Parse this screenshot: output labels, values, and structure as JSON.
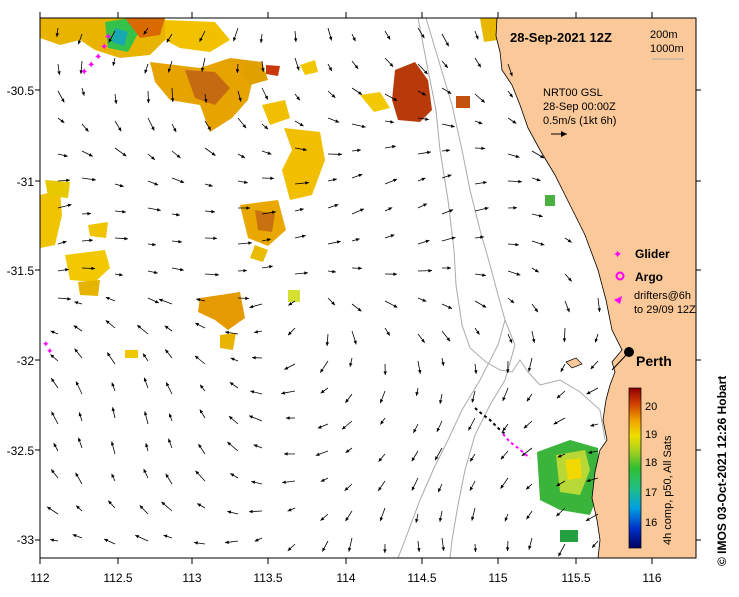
{
  "header": {
    "date_time": "28-Sep-2021 12Z",
    "contour_200": "200m",
    "contour_1000": "1000m"
  },
  "current_info": {
    "line1": "NRT00 GSL",
    "line2": "28-Sep 00:00Z",
    "line3": "0.5m/s (1kt 6h)"
  },
  "legend": {
    "glider": "Glider",
    "argo": "Argo",
    "drifters_line1": "drifters@6h",
    "drifters_line2": "to 29/09 12Z"
  },
  "city": {
    "name": "Perth"
  },
  "colorbar": {
    "label": "4h comp, p50, All Sats",
    "ticks": [
      "20",
      "19",
      "18",
      "17",
      "16"
    ]
  },
  "credit": "© IMOS 03-Oct-2021 12:26 Hobart",
  "x_ticks": [
    "112",
    "112.5",
    "113",
    "113.5",
    "114",
    "114.5",
    "115",
    "115.5",
    "116"
  ],
  "y_ticks": [
    "-30.5",
    "-31",
    "-31.5",
    "-32",
    "-32.5",
    "-33"
  ],
  "colors": {
    "land": "#fbc999",
    "glider": "#ff00ff",
    "argo": "#ff00ff",
    "drifter": "#ff00ff",
    "track": "#000000",
    "contour": "#aaaaaa"
  },
  "icons": {
    "glider": "plus-marker",
    "argo": "circle-marker",
    "drifter": "triangle-marker",
    "city": "dot-marker"
  }
}
